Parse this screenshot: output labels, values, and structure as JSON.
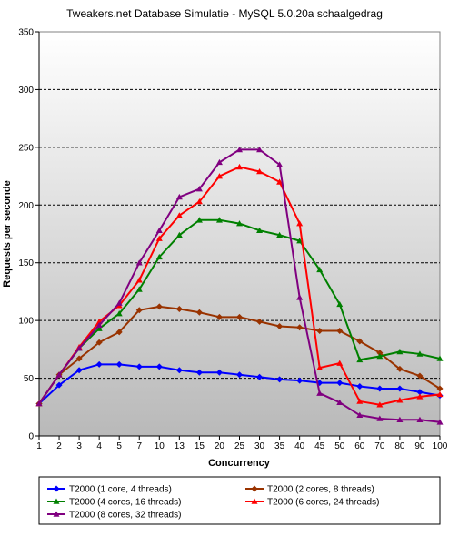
{
  "chart_data": {
    "type": "line",
    "title": "Tweakers.net Database Simulatie - MySQL 5.0.20a schaalgedrag",
    "xlabel": "Concurrency",
    "ylabel": "Requests per seconde",
    "ylim": [
      0,
      350
    ],
    "yticks": [
      "0",
      "50",
      "100",
      "150",
      "200",
      "250",
      "300",
      "350"
    ],
    "grid": "horizontal dashed",
    "legend_position": "bottom",
    "categories": [
      "1",
      "2",
      "3",
      "4",
      "5",
      "7",
      "10",
      "13",
      "15",
      "20",
      "25",
      "30",
      "35",
      "40",
      "45",
      "50",
      "60",
      "70",
      "80",
      "90",
      "100"
    ],
    "series": [
      {
        "name": "T2000 (1 core, 4 threads)",
        "color": "#0000ff",
        "marker": "diamond",
        "values": [
          28,
          44,
          57,
          62,
          62,
          60,
          60,
          57,
          55,
          55,
          53,
          51,
          49,
          48,
          46,
          46,
          43,
          41,
          41,
          38,
          35
        ]
      },
      {
        "name": "T2000 (2 cores, 8 threads)",
        "color": "#993300",
        "marker": "diamond",
        "values": [
          28,
          53,
          67,
          81,
          90,
          109,
          112,
          110,
          107,
          103,
          103,
          99,
          95,
          94,
          91,
          91,
          82,
          72,
          58,
          52,
          41
        ]
      },
      {
        "name": "T2000 (4 cores, 16 threads)",
        "color": "#008000",
        "marker": "triangle",
        "values": [
          28,
          53,
          76,
          93,
          106,
          127,
          155,
          174,
          187,
          187,
          184,
          178,
          174,
          169,
          144,
          114,
          66,
          69,
          73,
          71,
          67
        ]
      },
      {
        "name": "T2000 (6 cores, 24 threads)",
        "color": "#ff0000",
        "marker": "triangle",
        "values": [
          28,
          53,
          77,
          99,
          113,
          135,
          171,
          191,
          203,
          225,
          233,
          229,
          220,
          184,
          59,
          63,
          30,
          27,
          31,
          34,
          36
        ]
      },
      {
        "name": "T2000 (8 cores, 32 threads)",
        "color": "#800080",
        "marker": "triangle",
        "values": [
          28,
          53,
          76,
          96,
          115,
          150,
          178,
          207,
          214,
          237,
          248,
          248,
          235,
          120,
          37,
          29,
          18,
          15,
          14,
          14,
          12
        ]
      }
    ]
  }
}
